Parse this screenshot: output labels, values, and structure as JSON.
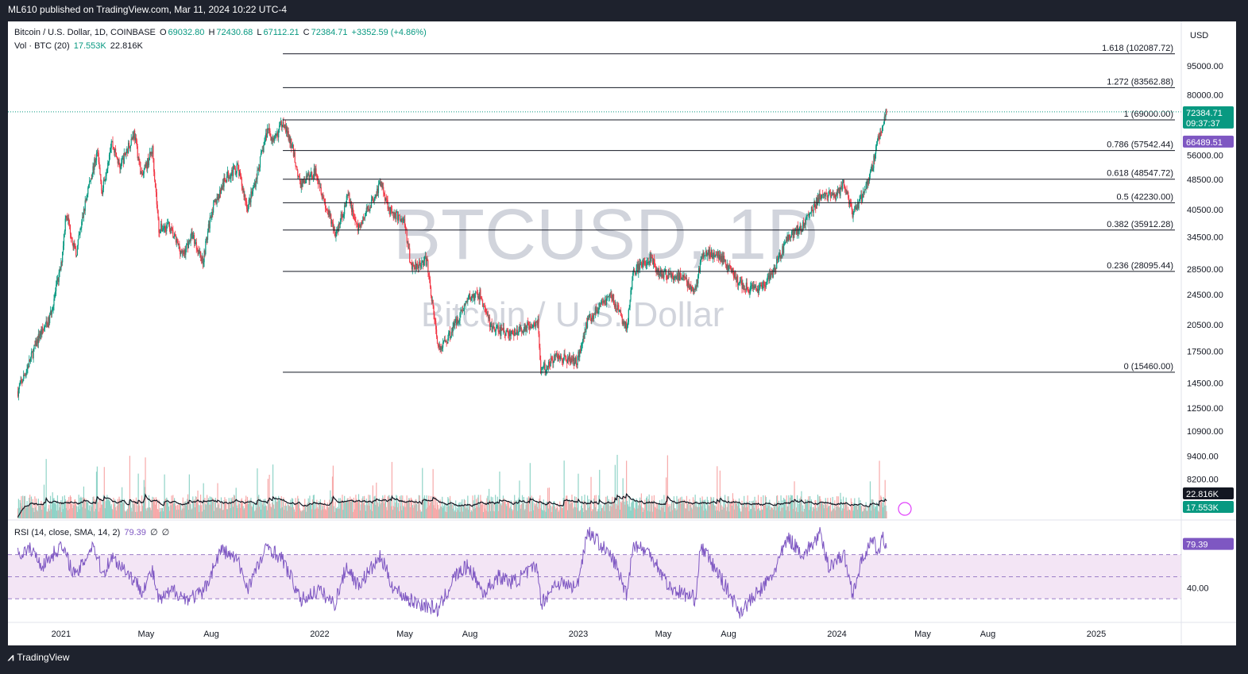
{
  "header": {
    "published": "ML610 published on TradingView.com, Mar 11, 2024 10:22 UTC-4"
  },
  "footer": {
    "brand": "TradingView"
  },
  "legend": {
    "symbol": "Bitcoin / U.S. Dollar, 1D, COINBASE",
    "open_label": "O",
    "open": "69032.80",
    "high_label": "H",
    "high": "72430.68",
    "low_label": "L",
    "low": "67112.21",
    "close_label": "C",
    "close": "72384.71",
    "change": "+3352.59 (+4.86%)",
    "vol_label": "Vol · BTC (20)",
    "vol_value": "17.553K",
    "vol_ma": "22.816K",
    "rsi_label": "RSI (14, close, SMA, 14, 2)",
    "rsi_value": "79.39",
    "rsi_extra1": "∅",
    "rsi_extra2": "∅"
  },
  "watermark": {
    "symbol": "BTCUSD, 1D",
    "name": "Bitcoin / U.S. Dollar"
  },
  "chart_data": {
    "type": "candlestick",
    "currency": "USD",
    "y_scale": "log",
    "price_ticks": [
      "95000.00",
      "80000.00",
      "56000.00",
      "48500.00",
      "40500.00",
      "34500.00",
      "28500.00",
      "24500.00",
      "20500.00",
      "17500.00",
      "14500.00",
      "12500.00",
      "10900.00",
      "9400.00",
      "8200.00"
    ],
    "rsi_ticks": [
      "40.00"
    ],
    "time_ticks": [
      "2021",
      "May",
      "Aug",
      "2022",
      "May",
      "Aug",
      "2023",
      "May",
      "Aug",
      "2024",
      "May",
      "Aug",
      "2025"
    ],
    "fib_levels": [
      {
        "ratio": "1.618",
        "price": 102087.72,
        "label": "1.618 (102087.72)"
      },
      {
        "ratio": "1.272",
        "price": 83562.88,
        "label": "1.272 (83562.88)"
      },
      {
        "ratio": "1",
        "price": 69000.0,
        "label": "1 (69000.00)"
      },
      {
        "ratio": "0.786",
        "price": 57542.44,
        "label": "0.786 (57542.44)"
      },
      {
        "ratio": "0.618",
        "price": 48547.72,
        "label": "0.618 (48547.72)"
      },
      {
        "ratio": "0.5",
        "price": 42230.0,
        "label": "0.5 (42230.00)"
      },
      {
        "ratio": "0.382",
        "price": 35912.28,
        "label": "0.382 (35912.28)"
      },
      {
        "ratio": "0.236",
        "price": 28095.44,
        "label": "0.236 (28095.44)"
      },
      {
        "ratio": "0",
        "price": 15460.0,
        "label": "0 (15460.00)"
      }
    ],
    "price_badges": {
      "last": "72384.71",
      "countdown": "09:37:37",
      "prev": "66489.51",
      "vol_ma": "22.816K",
      "vol": "17.553K",
      "rsi": "79.39"
    },
    "price_path": [
      [
        "2020-11-01",
        13800
      ],
      [
        "2020-11-15",
        16000
      ],
      [
        "2020-12-01",
        19200
      ],
      [
        "2020-12-15",
        21000
      ],
      [
        "2021-01-01",
        29000
      ],
      [
        "2021-01-08",
        40000
      ],
      [
        "2021-01-22",
        31000
      ],
      [
        "2021-02-08",
        46000
      ],
      [
        "2021-02-21",
        57000
      ],
      [
        "2021-02-28",
        45000
      ],
      [
        "2021-03-13",
        61000
      ],
      [
        "2021-03-25",
        52000
      ],
      [
        "2021-04-14",
        64000
      ],
      [
        "2021-04-25",
        49000
      ],
      [
        "2021-05-10",
        58000
      ],
      [
        "2021-05-19",
        36000
      ],
      [
        "2021-06-01",
        37000
      ],
      [
        "2021-06-22",
        31000
      ],
      [
        "2021-07-05",
        35000
      ],
      [
        "2021-07-20",
        29800
      ],
      [
        "2021-08-01",
        40000
      ],
      [
        "2021-08-23",
        49500
      ],
      [
        "2021-09-07",
        52000
      ],
      [
        "2021-09-21",
        41000
      ],
      [
        "2021-10-01",
        47000
      ],
      [
        "2021-10-20",
        66000
      ],
      [
        "2021-10-28",
        60000
      ],
      [
        "2021-11-10",
        69000
      ],
      [
        "2021-11-25",
        57000
      ],
      [
        "2021-12-04",
        47000
      ],
      [
        "2021-12-27",
        51000
      ],
      [
        "2022-01-10",
        41000
      ],
      [
        "2022-01-24",
        35000
      ],
      [
        "2022-02-10",
        44000
      ],
      [
        "2022-02-24",
        36000
      ],
      [
        "2022-03-28",
        47500
      ],
      [
        "2022-04-11",
        40000
      ],
      [
        "2022-04-30",
        38000
      ],
      [
        "2022-05-10",
        29000
      ],
      [
        "2022-06-01",
        30000
      ],
      [
        "2022-06-18",
        17600
      ],
      [
        "2022-07-01",
        19000
      ],
      [
        "2022-07-30",
        24000
      ],
      [
        "2022-08-15",
        24500
      ],
      [
        "2022-09-01",
        20000
      ],
      [
        "2022-09-30",
        19400
      ],
      [
        "2022-10-25",
        20500
      ],
      [
        "2022-11-05",
        21000
      ],
      [
        "2022-11-09",
        15500
      ],
      [
        "2022-12-01",
        17000
      ],
      [
        "2022-12-30",
        16500
      ],
      [
        "2023-01-14",
        21000
      ],
      [
        "2023-02-16",
        24500
      ],
      [
        "2023-03-10",
        20000
      ],
      [
        "2023-03-20",
        28000
      ],
      [
        "2023-04-14",
        30800
      ],
      [
        "2023-04-20",
        28000
      ],
      [
        "2023-05-30",
        27000
      ],
      [
        "2023-06-15",
        25000
      ],
      [
        "2023-06-23",
        30500
      ],
      [
        "2023-07-14",
        31500
      ],
      [
        "2023-08-01",
        29000
      ],
      [
        "2023-08-17",
        26000
      ],
      [
        "2023-09-11",
        25000
      ],
      [
        "2023-10-01",
        27500
      ],
      [
        "2023-10-24",
        34500
      ],
      [
        "2023-11-15",
        37000
      ],
      [
        "2023-12-08",
        44000
      ],
      [
        "2024-01-01",
        44000
      ],
      [
        "2024-01-11",
        47500
      ],
      [
        "2024-01-23",
        39000
      ],
      [
        "2024-02-08",
        45000
      ],
      [
        "2024-02-20",
        52000
      ],
      [
        "2024-02-28",
        62000
      ],
      [
        "2024-03-05",
        66000
      ],
      [
        "2024-03-11",
        72385
      ]
    ],
    "rsi_path": [
      [
        "2020-11-01",
        70
      ],
      [
        "2020-11-20",
        75
      ],
      [
        "2020-12-05",
        60
      ],
      [
        "2021-01-01",
        78
      ],
      [
        "2021-01-22",
        50
      ],
      [
        "2021-02-15",
        80
      ],
      [
        "2021-03-01",
        52
      ],
      [
        "2021-03-13",
        68
      ],
      [
        "2021-04-01",
        57
      ],
      [
        "2021-04-25",
        38
      ],
      [
        "2021-05-10",
        55
      ],
      [
        "2021-05-19",
        28
      ],
      [
        "2021-06-10",
        38
      ],
      [
        "2021-06-25",
        30
      ],
      [
        "2021-07-20",
        35
      ],
      [
        "2021-08-15",
        75
      ],
      [
        "2021-09-07",
        65
      ],
      [
        "2021-09-21",
        40
      ],
      [
        "2021-10-20",
        78
      ],
      [
        "2021-11-10",
        65
      ],
      [
        "2021-11-28",
        40
      ],
      [
        "2021-12-04",
        28
      ],
      [
        "2021-12-30",
        38
      ],
      [
        "2022-01-22",
        25
      ],
      [
        "2022-02-08",
        60
      ],
      [
        "2022-02-24",
        42
      ],
      [
        "2022-03-28",
        68
      ],
      [
        "2022-04-15",
        40
      ],
      [
        "2022-05-10",
        28
      ],
      [
        "2022-06-18",
        20
      ],
      [
        "2022-07-10",
        50
      ],
      [
        "2022-07-30",
        60
      ],
      [
        "2022-08-20",
        35
      ],
      [
        "2022-09-10",
        50
      ],
      [
        "2022-10-01",
        45
      ],
      [
        "2022-11-05",
        60
      ],
      [
        "2022-11-09",
        25
      ],
      [
        "2022-12-01",
        45
      ],
      [
        "2022-12-30",
        40
      ],
      [
        "2023-01-14",
        92
      ],
      [
        "2023-01-31",
        80
      ],
      [
        "2023-02-20",
        65
      ],
      [
        "2023-03-10",
        35
      ],
      [
        "2023-03-20",
        80
      ],
      [
        "2023-04-14",
        70
      ],
      [
        "2023-05-10",
        40
      ],
      [
        "2023-06-15",
        30
      ],
      [
        "2023-06-23",
        78
      ],
      [
        "2023-07-20",
        50
      ],
      [
        "2023-08-17",
        18
      ],
      [
        "2023-09-11",
        35
      ],
      [
        "2023-10-01",
        50
      ],
      [
        "2023-10-24",
        85
      ],
      [
        "2023-11-15",
        70
      ],
      [
        "2023-12-08",
        88
      ],
      [
        "2023-12-20",
        60
      ],
      [
        "2024-01-11",
        70
      ],
      [
        "2024-01-23",
        35
      ],
      [
        "2024-02-08",
        70
      ],
      [
        "2024-02-20",
        82
      ],
      [
        "2024-03-01",
        72
      ],
      [
        "2024-03-05",
        85
      ],
      [
        "2024-03-11",
        79
      ]
    ]
  },
  "colors": {
    "up": "#089981",
    "down": "#f23645",
    "fib": "#131722",
    "rsi": "#7e57c2",
    "rsi_band": "#f3e5f5",
    "badge_last": "#089981",
    "badge_prev": "#7e57c2",
    "bg": "#ffffff",
    "outer": "#1e222d"
  }
}
